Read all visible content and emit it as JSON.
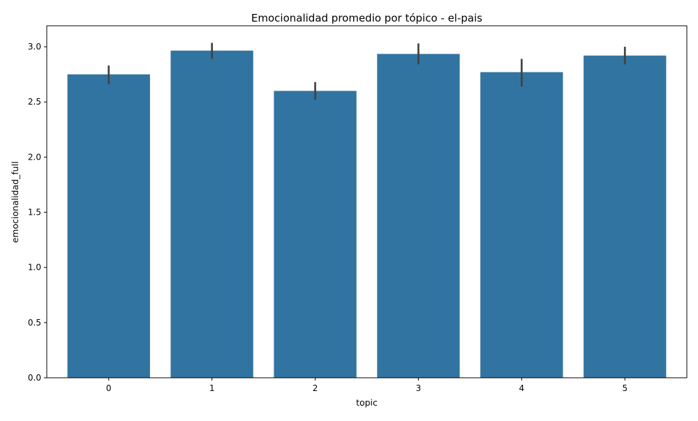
{
  "chart_data": {
    "type": "bar",
    "title": "Emocionalidad promedio por tópico - el-pais",
    "xlabel": "topic",
    "ylabel": "emocionalidad_full",
    "categories": [
      "0",
      "1",
      "2",
      "3",
      "4",
      "5"
    ],
    "values": [
      2.75,
      2.965,
      2.6,
      2.935,
      2.77,
      2.92
    ],
    "error_bars": [
      [
        2.66,
        2.83
      ],
      [
        2.89,
        3.035
      ],
      [
        2.52,
        2.68
      ],
      [
        2.84,
        3.03
      ],
      [
        2.64,
        2.89
      ],
      [
        2.84,
        3.0
      ]
    ],
    "ylim": [
      0,
      3.19
    ],
    "yticks": [
      0.0,
      0.5,
      1.0,
      1.5,
      2.0,
      2.5,
      3.0
    ],
    "ytick_labels": [
      "0.0",
      "0.5",
      "1.0",
      "1.5",
      "2.0",
      "2.5",
      "3.0"
    ],
    "grid": false,
    "colors": {
      "bar": "#3274a1",
      "error": "#424242",
      "axis": "#000000"
    }
  }
}
